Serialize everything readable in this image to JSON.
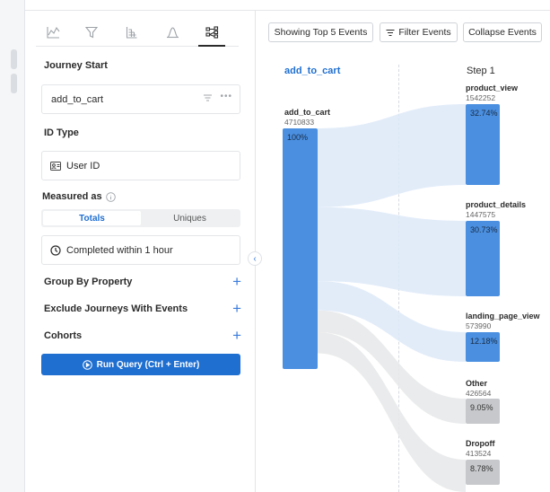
{
  "sidebar": {
    "tabs": [
      {
        "icon": "line-chart-icon"
      },
      {
        "icon": "funnel-icon"
      },
      {
        "icon": "retention-icon"
      },
      {
        "icon": "distribution-icon"
      },
      {
        "icon": "flows-icon",
        "active": true
      }
    ],
    "journey_start_label": "Journey Start",
    "journey_start_value": "add_to_cart",
    "id_type_label": "ID Type",
    "id_type_value": "User ID",
    "measured_as_label": "Measured as",
    "measured_toggle": [
      "Totals",
      "Uniques"
    ],
    "completed_within": "Completed within 1 hour",
    "group_by_label": "Group By Property",
    "exclude_label": "Exclude Journeys With Events",
    "cohorts_label": "Cohorts",
    "run_query_label": "Run Query (Ctrl + Enter)"
  },
  "toolbar": {
    "top_events_label": "Showing Top 5 Events",
    "filter_events_label": "Filter Events",
    "collapse_events_label": "Collapse Events"
  },
  "flow": {
    "start_column_title": "add_to_cart",
    "step_column_title": "Step 1",
    "start_node": {
      "name": "add_to_cart",
      "count": "4710833",
      "pct": "100%"
    },
    "steps": [
      {
        "name": "product_view",
        "count": "1542252",
        "pct": "32.74%",
        "type": "event"
      },
      {
        "name": "product_details",
        "count": "1447575",
        "pct": "30.73%",
        "type": "event"
      },
      {
        "name": "landing_page_view",
        "count": "573990",
        "pct": "12.18%",
        "type": "event"
      },
      {
        "name": "Other",
        "count": "426564",
        "pct": "9.05%",
        "type": "other"
      },
      {
        "name": "Dropoff",
        "count": "413524",
        "pct": "8.78%",
        "type": "dropoff"
      }
    ],
    "colors": {
      "event": "#4a8fe0",
      "other": "#c6c8cb",
      "link_event": "#dde9f8",
      "link_other": "#e6e7e9"
    }
  }
}
